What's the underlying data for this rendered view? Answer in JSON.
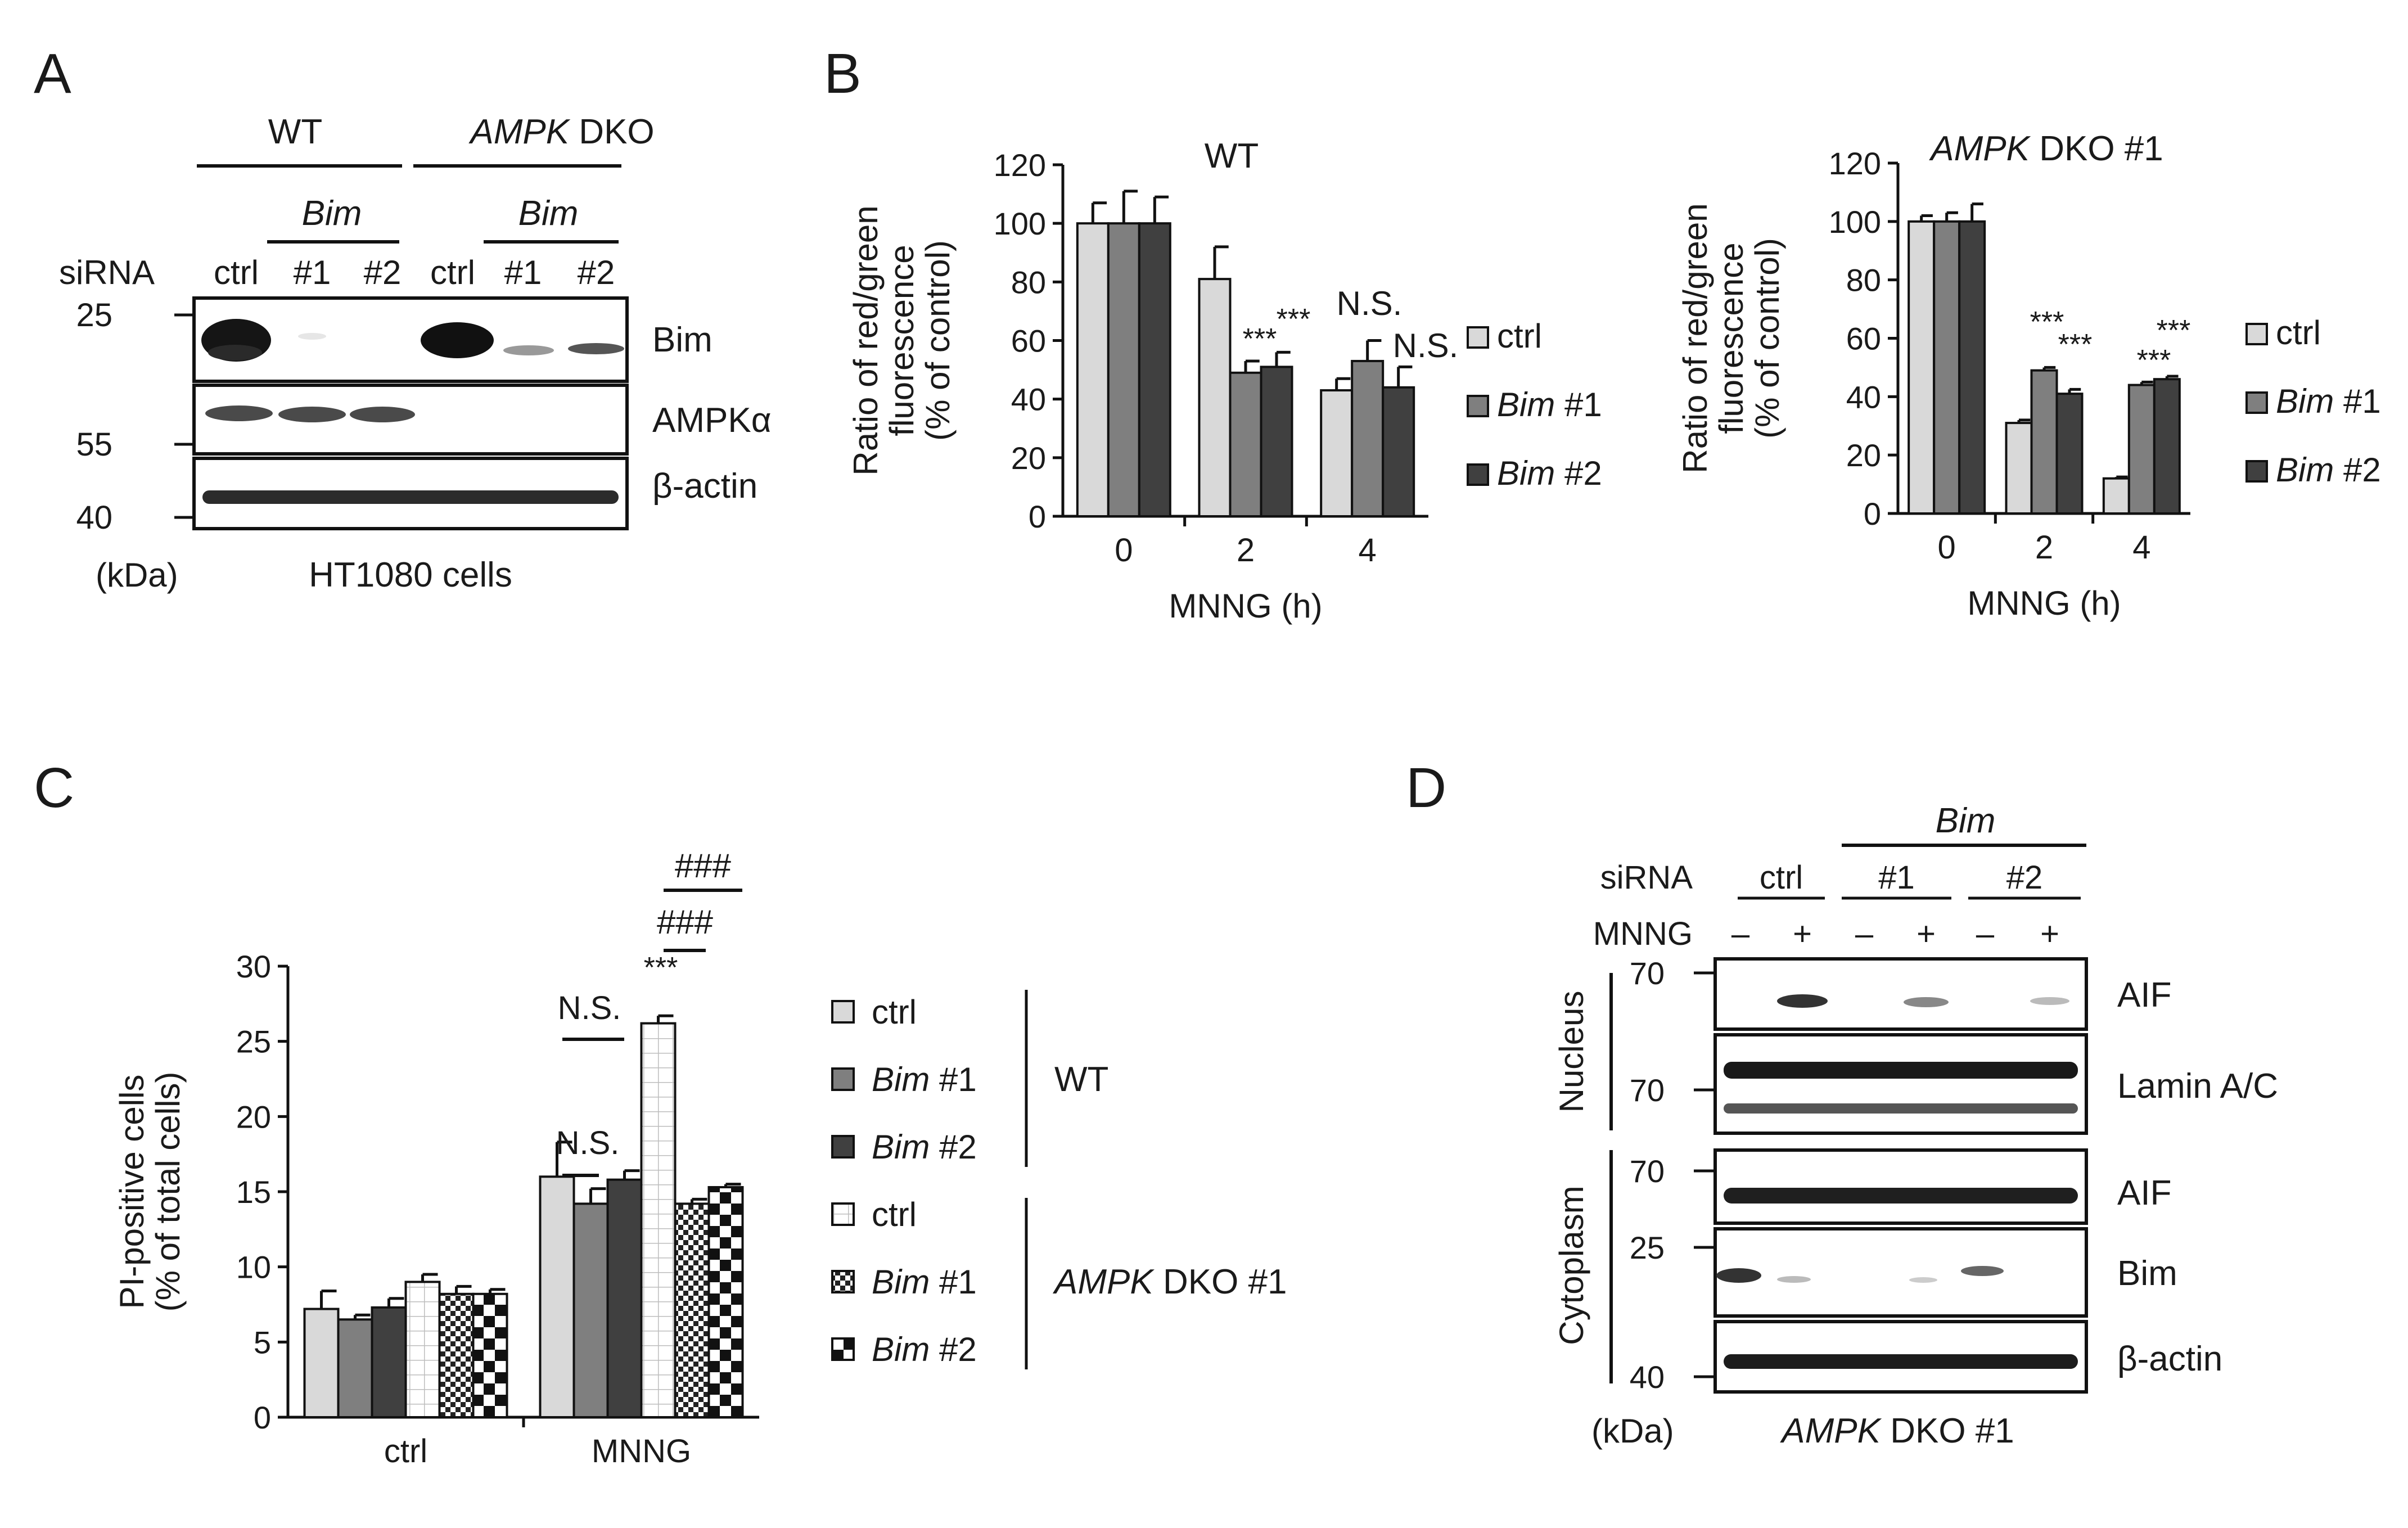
{
  "panels": {
    "A": {
      "letter": "A",
      "group_wt": "WT",
      "group_dko_italic": "AMPK",
      "group_dko_rest": " DKO",
      "bim_label": "Bim",
      "sirna_label": "siRNA",
      "lanes": [
        "ctrl",
        "#1",
        "#2",
        "ctrl",
        "#1",
        "#2"
      ],
      "bands": [
        "Bim",
        "AMPKα",
        "β-actin"
      ],
      "mw": [
        "25",
        "55",
        "40"
      ],
      "kda": "(kDa)",
      "cells": "HT1080 cells"
    },
    "B": {
      "letter": "B"
    },
    "C": {
      "letter": "C"
    },
    "D": {
      "letter": "D",
      "bim_label": "Bim",
      "sirna_label": "siRNA",
      "mnng_label": "MNNG",
      "sirna_groups": [
        "ctrl",
        "#1",
        "#2"
      ],
      "mnng_signs": [
        "–",
        "+",
        "–",
        "+",
        "–",
        "+"
      ],
      "bands": [
        "AIF",
        "Lamin A/C",
        "AIF",
        "Bim",
        "β-actin"
      ],
      "mw": [
        "70",
        "70",
        "70",
        "25",
        "40"
      ],
      "fractions": [
        "Nucleus",
        "Cytoplasm"
      ],
      "kda": "(kDa)",
      "cell_italic": "AMPK",
      "cell_rest": " DKO #1"
    }
  },
  "chart_data": [
    {
      "panel": "B-left",
      "type": "bar",
      "title": "WT",
      "xlabel": "MNNG (h)",
      "ylabel": [
        "Ratio of red/green",
        "fluorescence",
        "(% of control)"
      ],
      "categories": [
        "0",
        "2",
        "4"
      ],
      "ylim": [
        0,
        120
      ],
      "yticks": [
        "0",
        "20",
        "40",
        "60",
        "80",
        "100",
        "120"
      ],
      "series": [
        {
          "name": "ctrl",
          "name_italic": "",
          "name_rest": "ctrl",
          "color": "#d9d9d9",
          "values": [
            100,
            81,
            43
          ],
          "errors": [
            7,
            11,
            4
          ]
        },
        {
          "name": "Bim #1",
          "name_italic": "Bim",
          "name_rest": " #1",
          "color": "#7f7f7f",
          "values": [
            100,
            49,
            53
          ],
          "errors": [
            11,
            4,
            7
          ]
        },
        {
          "name": "Bim #2",
          "name_italic": "Bim",
          "name_rest": " #2",
          "color": "#404040",
          "values": [
            100,
            51,
            44
          ],
          "errors": [
            9,
            5,
            7
          ]
        }
      ],
      "annotations": [
        "***",
        "***",
        "N.S.",
        "N.S."
      ],
      "legend": "right"
    },
    {
      "panel": "B-right",
      "type": "bar",
      "title_italic": "AMPK",
      "title_rest": " DKO #1",
      "xlabel": "MNNG (h)",
      "ylabel": [
        "Ratio of red/green",
        "fluorescence",
        "(% of control)"
      ],
      "categories": [
        "0",
        "2",
        "4"
      ],
      "ylim": [
        0,
        120
      ],
      "yticks": [
        "0",
        "20",
        "40",
        "60",
        "80",
        "100",
        "120"
      ],
      "series": [
        {
          "name": "ctrl",
          "name_italic": "",
          "name_rest": "ctrl",
          "color": "#d9d9d9",
          "values": [
            100,
            31,
            12
          ],
          "errors": [
            2,
            1,
            0.5
          ]
        },
        {
          "name": "Bim #1",
          "name_italic": "Bim",
          "name_rest": " #1",
          "color": "#7f7f7f",
          "values": [
            100,
            49,
            44
          ],
          "errors": [
            3,
            1,
            1
          ]
        },
        {
          "name": "Bim #2",
          "name_italic": "Bim",
          "name_rest": " #2",
          "color": "#404040",
          "values": [
            100,
            41,
            46
          ],
          "errors": [
            6,
            1.5,
            1
          ]
        }
      ],
      "annotations": [
        "***",
        "***",
        "***",
        "***"
      ],
      "legend": "right"
    },
    {
      "panel": "C",
      "type": "bar",
      "xlabel": "",
      "ylabel": [
        "PI-positive cells",
        "(% of total cells)"
      ],
      "categories": [
        "ctrl",
        "MNNG"
      ],
      "ylim": [
        0,
        30
      ],
      "yticks": [
        "0",
        "5",
        "10",
        "15",
        "20",
        "25",
        "30"
      ],
      "series": [
        {
          "name": "WT ctrl",
          "group": "WT",
          "name_italic": "",
          "name_rest": "ctrl",
          "color": "#d9d9d9",
          "pattern": "solid",
          "values": [
            7.2,
            16.0
          ],
          "errors": [
            1.2,
            2.3
          ]
        },
        {
          "name": "WT Bim #1",
          "group": "WT",
          "name_italic": "Bim",
          "name_rest": " #1",
          "color": "#7f7f7f",
          "pattern": "solid",
          "values": [
            6.5,
            14.2
          ],
          "errors": [
            0.3,
            1.0
          ]
        },
        {
          "name": "WT Bim #2",
          "group": "WT",
          "name_italic": "Bim",
          "name_rest": " #2",
          "color": "#404040",
          "pattern": "solid",
          "values": [
            7.3,
            15.8
          ],
          "errors": [
            0.6,
            0.6
          ]
        },
        {
          "name": "AMPK DKO #1 ctrl",
          "group": "AMPK DKO #1",
          "name_italic": "",
          "name_rest": "ctrl",
          "color": "#ffffff",
          "pattern": "grid",
          "values": [
            9.0,
            26.2
          ],
          "errors": [
            0.5,
            0.5
          ]
        },
        {
          "name": "AMPK DKO #1 Bim #1",
          "group": "AMPK DKO #1",
          "name_italic": "Bim",
          "name_rest": " #1",
          "color": "#ffffff",
          "pattern": "dots",
          "values": [
            8.2,
            14.2
          ],
          "errors": [
            0.5,
            0.3
          ]
        },
        {
          "name": "AMPK DKO #1 Bim #2",
          "group": "AMPK DKO #1",
          "name_italic": "Bim",
          "name_rest": " #2",
          "color": "#ffffff",
          "pattern": "checker",
          "values": [
            8.2,
            15.3
          ],
          "errors": [
            0.3,
            0.2
          ]
        }
      ],
      "groups": [
        "WT",
        "AMPK DKO #1"
      ],
      "group_italic": [
        "",
        "AMPK"
      ],
      "group_rest": [
        "WT",
        " DKO #1"
      ],
      "annotations": [
        "N.S.",
        "N.S.",
        "***",
        "###",
        "###"
      ],
      "legend": "right"
    }
  ]
}
